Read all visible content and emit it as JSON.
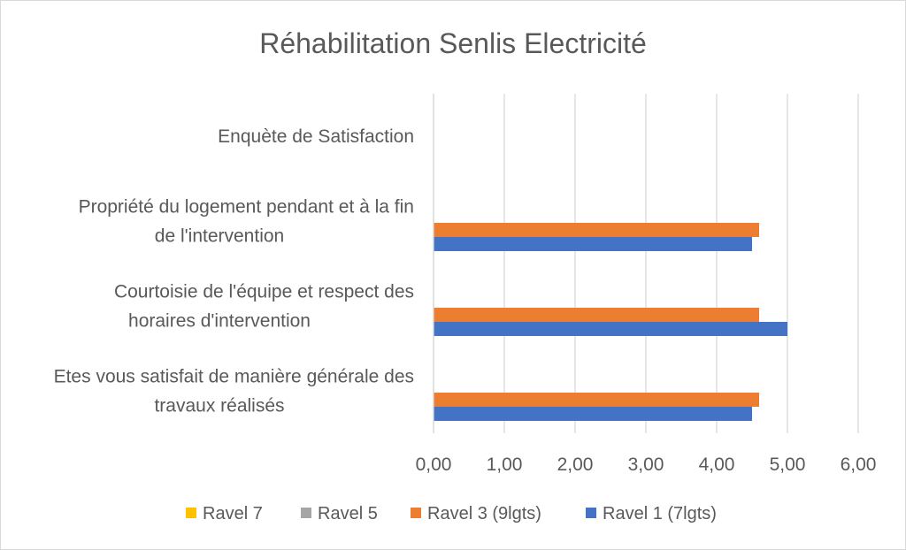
{
  "chart_data": {
    "type": "bar",
    "orientation": "horizontal",
    "title": "Réhabilitation Senlis Electricité",
    "categories": [
      [
        "Etes vous satisfait de manière générale des",
        "travaux réalisés"
      ],
      [
        "Courtoisie de l'équipe et respect des",
        "horaires d'intervention"
      ],
      [
        "Propriété du logement pendant et à la fin",
        "de l'intervention"
      ],
      [
        "Enquète de Satisfaction"
      ]
    ],
    "series": [
      {
        "name": "Ravel 1 (7lgts)",
        "color": "#4472C4",
        "values": [
          4.5,
          5.0,
          4.5,
          null
        ]
      },
      {
        "name": "Ravel 3 (9lgts)",
        "color": "#ED7D31",
        "values": [
          4.6,
          4.6,
          4.6,
          null
        ]
      },
      {
        "name": "Ravel 5",
        "color": "#A5A5A5",
        "values": [
          null,
          null,
          null,
          null
        ]
      },
      {
        "name": "Ravel 7",
        "color": "#FFC000",
        "values": [
          null,
          null,
          null,
          null
        ]
      }
    ],
    "legend_order": [
      "Ravel 7",
      "Ravel 5",
      "Ravel 3 (9lgts)",
      "Ravel 1 (7lgts)"
    ],
    "xlim": [
      0,
      6
    ],
    "xticks": [
      "0,00",
      "1,00",
      "2,00",
      "3,00",
      "4,00",
      "5,00",
      "6,00"
    ],
    "grid": true,
    "legend_position": "bottom"
  }
}
